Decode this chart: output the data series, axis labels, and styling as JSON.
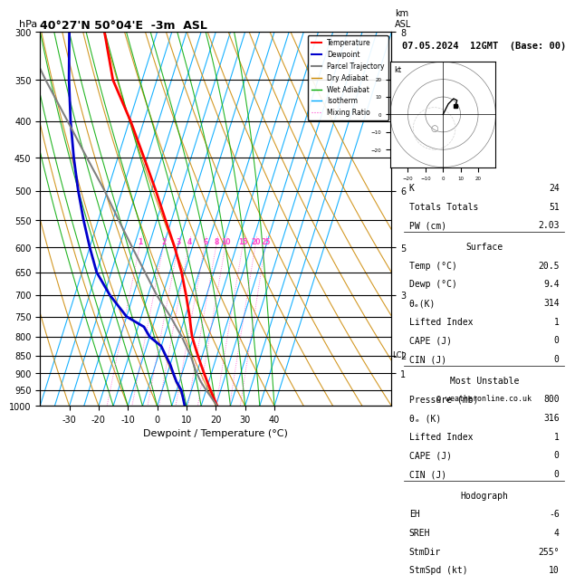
{
  "title_left": "40°27'N 50°04'E  -3m  ASL",
  "title_right": "07.05.2024  12GMT  (Base: 00)",
  "xlabel": "Dewpoint / Temperature (°C)",
  "ylabel_left": "hPa",
  "pres_levels": [
    300,
    350,
    400,
    450,
    500,
    550,
    600,
    650,
    700,
    750,
    800,
    850,
    900,
    950,
    1000
  ],
  "pres_labels": [
    300,
    350,
    400,
    450,
    500,
    550,
    600,
    650,
    700,
    750,
    800,
    850,
    900,
    950,
    1000
  ],
  "temp_ticks": [
    -30,
    -20,
    -10,
    0,
    10,
    20,
    30,
    40
  ],
  "isotherm_temps": [
    -40,
    -35,
    -30,
    -25,
    -20,
    -15,
    -10,
    -5,
    0,
    5,
    10,
    15,
    20,
    25,
    30,
    35,
    40
  ],
  "dry_adiabat_thetas": [
    -40,
    -30,
    -20,
    -10,
    0,
    10,
    20,
    30,
    40,
    50,
    60,
    70,
    80,
    90,
    100,
    110,
    120
  ],
  "wet_adiabat_thetas": [
    -15,
    -10,
    -5,
    0,
    5,
    10,
    15,
    20,
    25,
    30,
    35,
    40
  ],
  "mixing_ratios": [
    1,
    2,
    3,
    4,
    6,
    8,
    10,
    15,
    20,
    25
  ],
  "temperature_profile": {
    "pressure": [
      1000,
      975,
      950,
      925,
      900,
      875,
      850,
      825,
      800,
      775,
      750,
      700,
      650,
      600,
      550,
      500,
      450,
      400,
      350,
      300
    ],
    "temp": [
      20.5,
      18.5,
      16.5,
      14.5,
      12.5,
      10.5,
      8.5,
      6.5,
      4.5,
      3.0,
      1.5,
      -2.0,
      -6.0,
      -11.0,
      -17.0,
      -23.5,
      -31.0,
      -39.5,
      -50.0,
      -58.0
    ]
  },
  "dewpoint_profile": {
    "pressure": [
      1000,
      975,
      950,
      925,
      900,
      875,
      850,
      825,
      800,
      775,
      750,
      700,
      650,
      600,
      550,
      500,
      450,
      400,
      350,
      300
    ],
    "dewp": [
      9.4,
      8.0,
      6.5,
      4.0,
      2.0,
      0.0,
      -2.5,
      -5.0,
      -10.0,
      -13.0,
      -20.0,
      -28.0,
      -35.0,
      -40.0,
      -45.0,
      -50.0,
      -55.0,
      -60.0,
      -65.0,
      -70.0
    ]
  },
  "parcel_profile": {
    "pressure": [
      1000,
      975,
      950,
      925,
      900,
      875,
      850,
      840,
      825,
      800,
      775,
      750,
      700,
      650,
      600,
      550,
      500,
      450,
      400,
      350,
      300
    ],
    "temp": [
      20.5,
      17.8,
      15.0,
      12.3,
      10.0,
      8.0,
      6.0,
      5.0,
      3.5,
      1.0,
      -2.0,
      -5.0,
      -12.0,
      -18.5,
      -25.5,
      -33.0,
      -41.0,
      -50.5,
      -61.0,
      -73.0,
      -86.0
    ]
  },
  "lcl_pressure": 848,
  "colors": {
    "temperature": "#ff0000",
    "dewpoint": "#0000cc",
    "parcel": "#808080",
    "dry_adiabat": "#cc8800",
    "wet_adiabat": "#00aa00",
    "isotherm": "#00aaff",
    "mixing_ratio": "#ff44cc",
    "background": "#ffffff",
    "grid": "#000000"
  },
  "stats": {
    "K": "24",
    "Totals_Totals": "51",
    "PW_cm": "2.03",
    "surface_temp": "20.5",
    "surface_dewp": "9.4",
    "surface_theta_e": "314",
    "surface_lifted_index": "1",
    "surface_cape": "0",
    "surface_cin": "0",
    "mu_pressure": "800",
    "mu_theta_e": "316",
    "mu_lifted_index": "1",
    "mu_cape": "0",
    "mu_cin": "0",
    "EH": "-6",
    "SREH": "4",
    "StmDir": "255°",
    "StmSpd": "10"
  },
  "copyright": "© weatheronline.co.uk"
}
